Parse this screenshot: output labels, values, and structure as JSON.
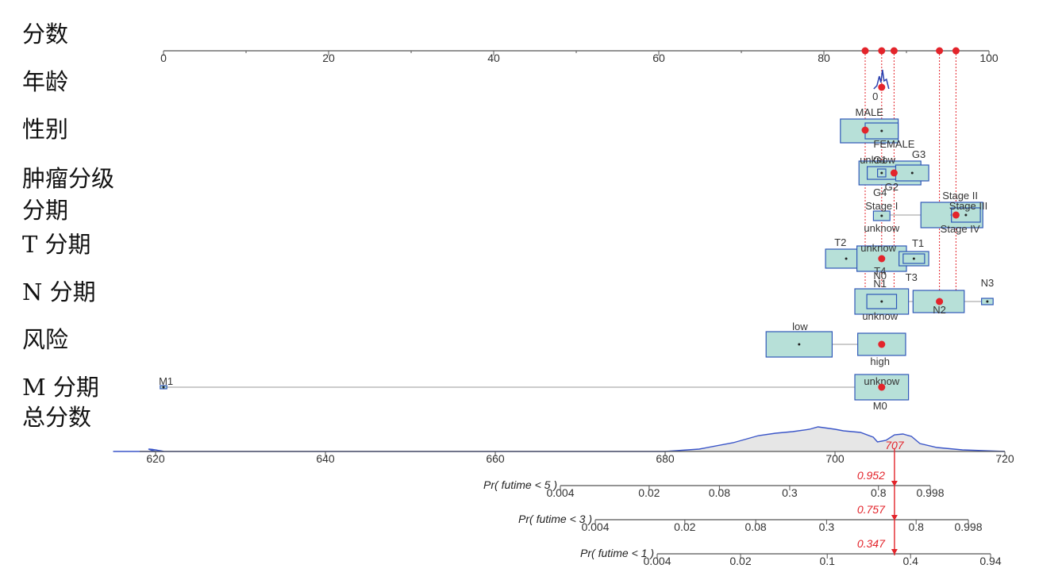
{
  "chart_data": {
    "type": "nomogram",
    "rows": [
      "分数",
      "年龄",
      "性别",
      "肿瘤分级",
      "分期",
      "T 分期",
      "N 分期",
      "风险",
      "M 分期",
      "总分数"
    ],
    "points_axis": {
      "range": [
        0,
        100
      ],
      "ticks": [
        "0",
        "20",
        "40",
        "60",
        "80",
        "100"
      ]
    },
    "selected_points": [
      85,
      87,
      88.5,
      94,
      96
    ],
    "age": {
      "label": "0",
      "value": 87
    },
    "variables": [
      {
        "name": "性别",
        "categories": [
          {
            "label": "MALE",
            "value": 87,
            "width": 7
          },
          {
            "label": "FEMALE",
            "value": 87,
            "width": 4
          }
        ],
        "selected": 85
      },
      {
        "name": "肿瘤分级",
        "categories": [
          {
            "label": "G1",
            "value": 87,
            "width": 4
          },
          {
            "label": "G2",
            "value": 88.5,
            "width": 3
          },
          {
            "label": "G3",
            "value": 90.7,
            "width": 4
          },
          {
            "label": "G4",
            "value": 87,
            "width": 1
          },
          {
            "label": "unknow",
            "value": 87,
            "width": 6
          }
        ],
        "selected": 88.5
      },
      {
        "name": "分期",
        "categories": [
          {
            "label": "Stage I",
            "value": 87,
            "width": 2
          },
          {
            "label": "Stage II",
            "value": 95.5,
            "width": 7
          },
          {
            "label": "Stage III",
            "value": 97,
            "width": 3
          },
          {
            "label": "Stage IV",
            "value": 96,
            "width": 5
          },
          {
            "label": "unknow",
            "value": 87,
            "width": 1
          }
        ],
        "selected": 96
      },
      {
        "name": "T 分期",
        "categories": [
          {
            "label": "T1",
            "value": 90.7,
            "width": 2
          },
          {
            "label": "T2",
            "value": 82.7,
            "width": 5
          },
          {
            "label": "T3",
            "value": 90.7,
            "width": 4
          },
          {
            "label": "T4",
            "value": 87,
            "width": 6
          },
          {
            "label": "unknow",
            "value": 87,
            "width": 2
          }
        ],
        "selected": 87
      },
      {
        "name": "N 分期",
        "categories": [
          {
            "label": "N0",
            "value": 87,
            "width": 7
          },
          {
            "label": "N1",
            "value": 87,
            "width": 4
          },
          {
            "label": "N2",
            "value": 94,
            "width": 7
          },
          {
            "label": "N3",
            "value": 100,
            "width": 1.5
          },
          {
            "label": "unknow",
            "value": 87,
            "width": 1
          }
        ],
        "selected": 94
      },
      {
        "name": "风险",
        "categories": [
          {
            "label": "low",
            "value": 77,
            "width": 8
          },
          {
            "label": "high",
            "value": 87,
            "width": 7
          }
        ],
        "selected": 87
      },
      {
        "name": "M 分期",
        "categories": [
          {
            "label": "M1",
            "value": 0,
            "width": 0.8
          },
          {
            "label": "M0",
            "value": 87,
            "width": 8
          },
          {
            "label": "unknow",
            "value": 87,
            "width": 2
          }
        ],
        "selected": 87
      }
    ],
    "total_points_axis": {
      "range": [
        620,
        720
      ],
      "ticks": [
        "620",
        "640",
        "660",
        "680",
        "700",
        "720"
      ]
    },
    "total_selected": 707,
    "total_selected_label": "707",
    "probability_axes": [
      {
        "label": "Pr( futime < 5 )",
        "ticks": [
          "0.004",
          "0.02",
          "0.08",
          "0.3",
          "0.8",
          "0.998"
        ],
        "result": "0.952"
      },
      {
        "label": "Pr( futime < 3 )",
        "ticks": [
          "0.004",
          "0.02",
          "0.08",
          "0.3",
          "0.8",
          "0.998"
        ],
        "result": "0.757"
      },
      {
        "label": "Pr( futime < 1 )",
        "ticks": [
          "0.004",
          "0.02",
          "0.1",
          "0.4",
          "0.94"
        ],
        "result": "0.347"
      }
    ]
  }
}
